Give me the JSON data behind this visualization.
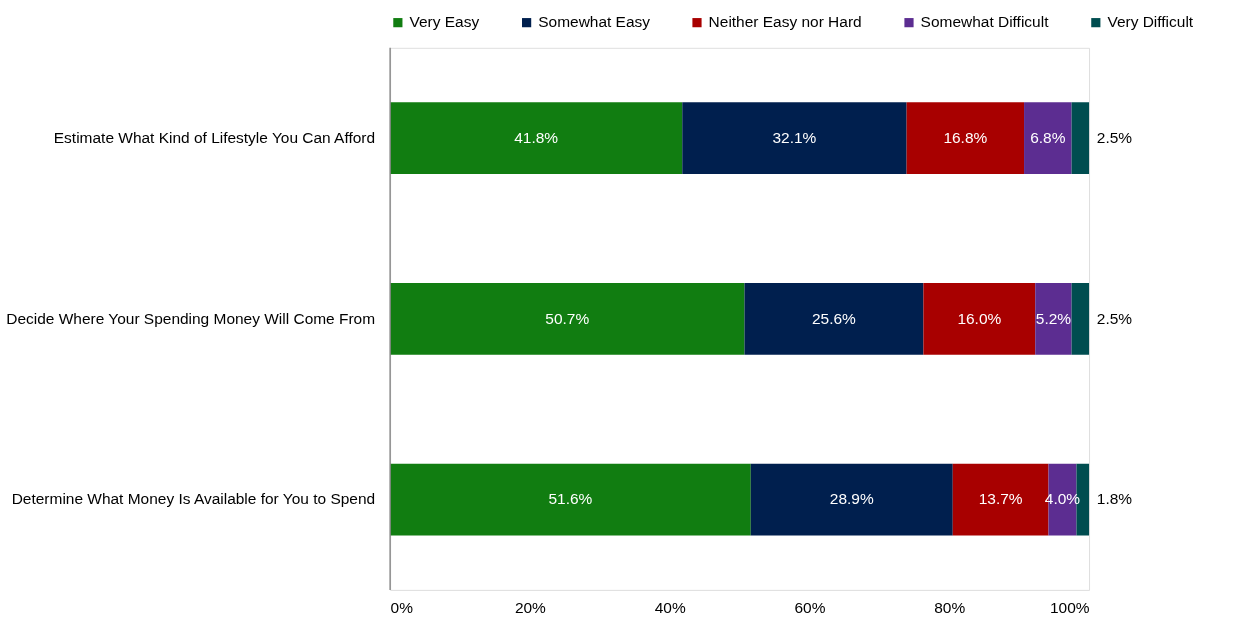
{
  "chart_data": {
    "type": "bar",
    "orientation": "horizontal",
    "stacked": true,
    "categories": [
      "Estimate What Kind of Lifestyle You Can Afford",
      "Decide Where Your Spending Money Will Come From",
      "Determine What Money Is Available for You to Spend"
    ],
    "series": [
      {
        "name": "Very Easy",
        "color": "#117d11",
        "values": [
          41.8,
          50.7,
          51.6
        ],
        "value_labels": [
          "41.8%",
          "50.7%",
          "51.6%"
        ]
      },
      {
        "name": "Somewhat Easy",
        "color": "#001f4e",
        "values": [
          32.1,
          25.6,
          28.9
        ],
        "value_labels": [
          "32.1%",
          "25.6%",
          "28.9%"
        ]
      },
      {
        "name": "Neither Easy nor Hard",
        "color": "#a80000",
        "values": [
          16.8,
          16.0,
          13.7
        ],
        "value_labels": [
          "16.8%",
          "16.0%",
          "13.7%"
        ]
      },
      {
        "name": "Somewhat Difficult",
        "color": "#5c2d91",
        "values": [
          6.8,
          5.2,
          4.0
        ],
        "value_labels": [
          "6.8%",
          "5.2%",
          "4.0%"
        ]
      },
      {
        "name": "Very Difficult",
        "color": "#004d50",
        "values": [
          2.5,
          2.5,
          1.8
        ],
        "value_labels": [
          "2.5%",
          "2.5%",
          "1.8%"
        ]
      }
    ],
    "xlim": [
      0,
      100
    ],
    "xticks": [
      {
        "value": 0,
        "label": "0%"
      },
      {
        "value": 20,
        "label": "20%"
      },
      {
        "value": 40,
        "label": "40%"
      },
      {
        "value": 60,
        "label": "60%"
      },
      {
        "value": 80,
        "label": "80%"
      },
      {
        "value": 100,
        "label": "100%"
      }
    ],
    "grid": false,
    "legend": "top"
  }
}
